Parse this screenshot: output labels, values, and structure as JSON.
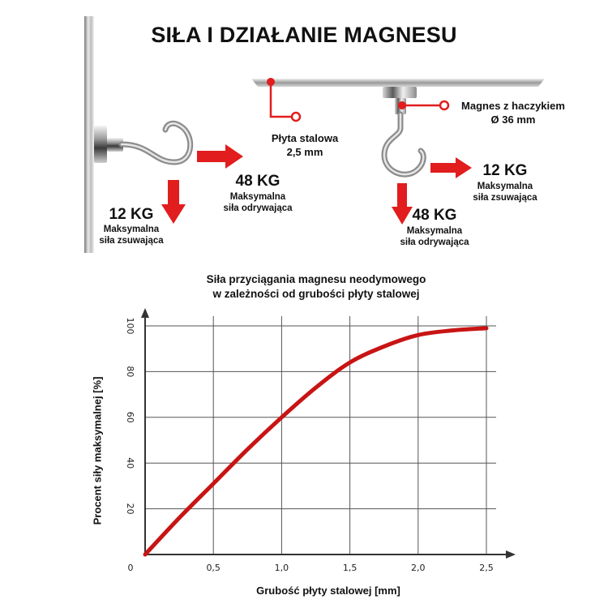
{
  "title": "SIŁA I DZIAŁANIE MAGNESU",
  "left_diagram": {
    "pull_force_value": "48 KG",
    "pull_force_label": [
      "Maksymalna",
      "siła odrywająca"
    ],
    "shear_force_value": "12 KG",
    "shear_force_label": [
      "Maksymalna",
      "siła zsuwająca"
    ]
  },
  "right_diagram": {
    "plate_label": [
      "Płyta stalowa",
      "2,5 mm"
    ],
    "magnet_label": [
      "Magnes z haczykiem",
      "Ø 36 mm"
    ],
    "shear_force_value": "12 KG",
    "shear_force_label": [
      "Maksymalna",
      "siła zsuwająca"
    ],
    "pull_force_value": "48 KG",
    "pull_force_label": [
      "Maksymalna",
      "siła odrywająca"
    ]
  },
  "colors": {
    "accent": "#e11d1d",
    "curve": "#c81414",
    "grid": "#555555"
  },
  "chart_data": {
    "type": "line",
    "title": [
      "Siła przyciągania magnesu neodymowego",
      "w zależności od grubości płyty stalowej"
    ],
    "xlabel": "Grubość płyty stalowej [mm]",
    "ylabel": "Procent siły maksymalnej [%]",
    "xlim": [
      0,
      2.5
    ],
    "ylim": [
      0,
      100
    ],
    "xticks": [
      "0",
      "0,5",
      "1,0",
      "1,5",
      "2,0",
      "2,5"
    ],
    "yticks": [
      "20",
      "40",
      "60",
      "80",
      "100"
    ],
    "grid": true,
    "series": [
      {
        "x": [
          0,
          0.25,
          0.5,
          0.75,
          1.0,
          1.25,
          1.5,
          1.75,
          2.0,
          2.25,
          2.5
        ],
        "values": [
          0,
          16,
          31,
          46,
          60,
          73,
          84,
          91,
          96,
          98,
          99
        ]
      }
    ]
  }
}
